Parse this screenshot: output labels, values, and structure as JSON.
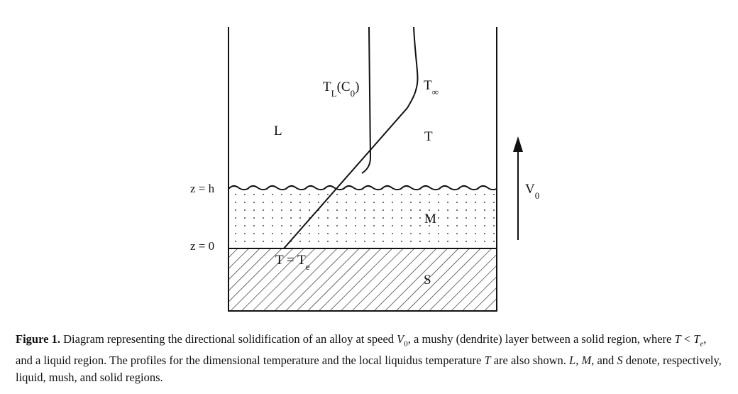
{
  "labels": {
    "liquidus": [
      {
        "text": "T"
      },
      {
        "text": "L",
        "sub": true
      },
      {
        "text": "(C"
      },
      {
        "text": "0",
        "sub": true
      },
      {
        "text": ")"
      }
    ],
    "far_temp": [
      {
        "text": "T"
      },
      {
        "text": "∞",
        "sub": true
      }
    ],
    "liquid": "L",
    "temperature": "T",
    "mush": "M",
    "solid": "S",
    "interface": "z = h",
    "base": "z = 0",
    "eutectic": [
      {
        "text": "T = T"
      },
      {
        "text": "e",
        "sub": true
      }
    ],
    "speed": [
      {
        "text": "V"
      },
      {
        "text": "0",
        "sub": true
      }
    ]
  },
  "caption": [
    {
      "text": "Figure 1.",
      "style": "bold"
    },
    {
      "text": "  Diagram representing the directional solidification of an alloy at speed ",
      "style": "normal"
    },
    {
      "text": "V",
      "style": "italic"
    },
    {
      "text": "0",
      "style": "sub"
    },
    {
      "text": ", a mushy (dendrite) layer between a solid region, where ",
      "style": "normal"
    },
    {
      "text": "T",
      "style": "italic"
    },
    {
      "text": " < ",
      "style": "normal"
    },
    {
      "text": "T",
      "style": "italic"
    },
    {
      "text": "e",
      "style": "sub-italic"
    },
    {
      "text": ", and a liquid region. The profiles for the dimensional temperature and the local liquidus temperature ",
      "style": "normal"
    },
    {
      "text": "T",
      "style": "italic"
    },
    {
      "text": " are also shown. ",
      "style": "normal"
    },
    {
      "text": "L",
      "style": "italic"
    },
    {
      "text": ", ",
      "style": "normal"
    },
    {
      "text": "M",
      "style": "italic"
    },
    {
      "text": ", and ",
      "style": "normal"
    },
    {
      "text": "S",
      "style": "italic"
    },
    {
      "text": " denote, respectively, liquid, mush, and solid regions.",
      "style": "normal"
    }
  ]
}
